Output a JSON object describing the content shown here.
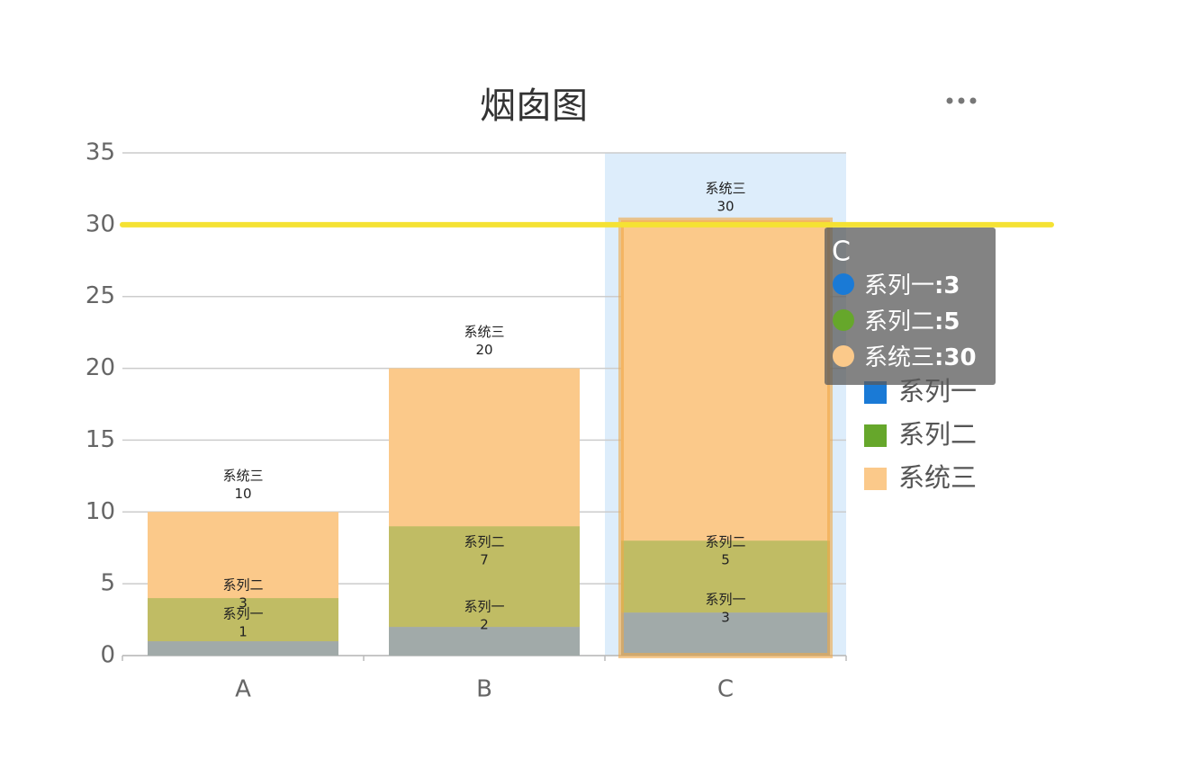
{
  "chart_data": {
    "type": "chimney",
    "title": "烟囱图",
    "categories": [
      "A",
      "B",
      "C"
    ],
    "series": [
      {
        "name": "系列一",
        "color": "#1a7ad6",
        "values": [
          1,
          2,
          3
        ]
      },
      {
        "name": "系列二",
        "color": "#66a72b",
        "values": [
          3,
          7,
          5
        ]
      },
      {
        "name": "系统三",
        "color": "#fbc98a",
        "values": [
          10,
          20,
          30
        ]
      }
    ],
    "ylim": [
      0,
      35
    ],
    "yticks": [
      0,
      5,
      10,
      15,
      20,
      25,
      30,
      35
    ],
    "grid": true,
    "markline": {
      "value": 30,
      "color": "#f5e233"
    },
    "legend": "right",
    "hover_index": 2,
    "tooltip_separator": ":"
  }
}
